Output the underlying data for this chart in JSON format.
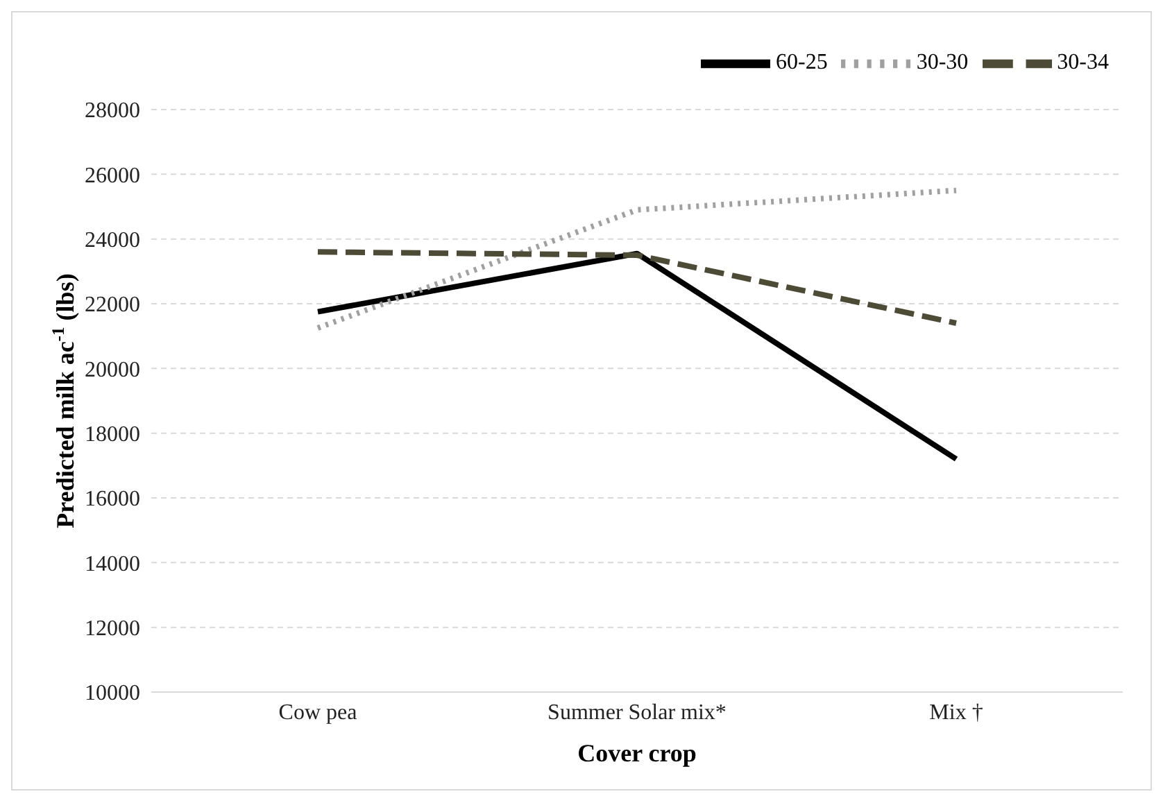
{
  "chart_data": {
    "type": "line",
    "xlabel": "Cover crop",
    "ylabel": "Predicted milk ac$^{-1}$ (lbs)",
    "categories": [
      "Cow pea",
      "Summer Solar mix*",
      "Mix †"
    ],
    "series": [
      {
        "name": "60-25",
        "color": "#000000",
        "line_style": "solid",
        "values": [
          21750,
          23550,
          17200
        ]
      },
      {
        "name": "30-30",
        "color": "#a0a0a0",
        "line_style": "dotted",
        "values": [
          21250,
          24900,
          25500
        ]
      },
      {
        "name": "30-34",
        "color": "#4d4a35",
        "line_style": "dashed",
        "values": [
          23600,
          23500,
          21400
        ]
      }
    ],
    "ylim": [
      10000,
      28000
    ],
    "yticks": [
      10000,
      12000,
      14000,
      16000,
      18000,
      20000,
      22000,
      24000,
      26000,
      28000
    ],
    "grid": "y",
    "legend": "top right",
    "marker": "none"
  }
}
